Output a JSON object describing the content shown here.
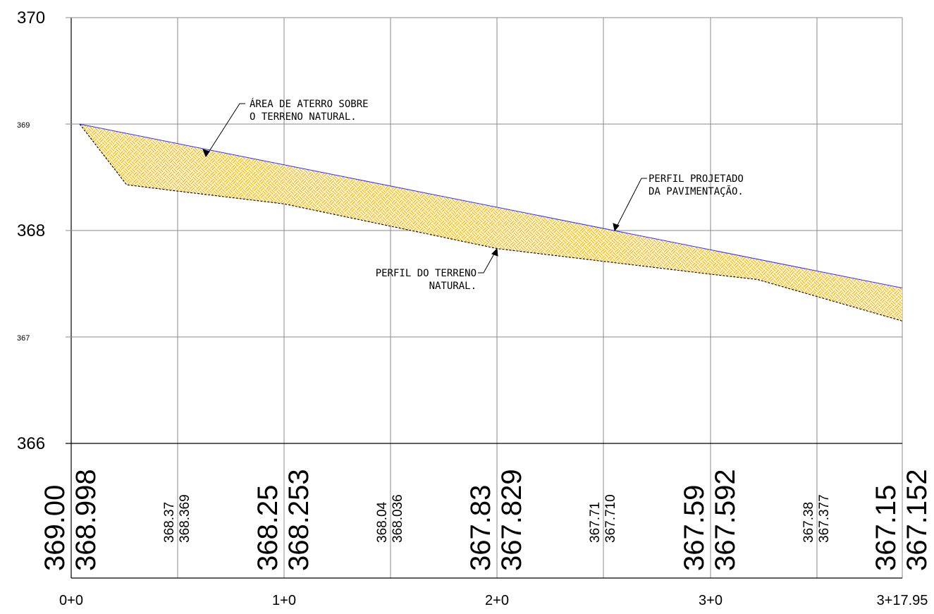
{
  "chart_data": {
    "type": "line",
    "title": "",
    "xlabel": "",
    "ylabel": "",
    "xlim": [
      0,
      317.95
    ],
    "ylim": [
      366,
      370
    ],
    "y_ticks": [
      {
        "value": 370,
        "label": "370"
      },
      {
        "value": 369,
        "label": "369"
      },
      {
        "value": 368,
        "label": "368"
      },
      {
        "value": 367,
        "label": "367"
      },
      {
        "value": 366,
        "label": "366"
      }
    ],
    "x_ticks": [
      {
        "value": 0,
        "label": "0+0"
      },
      {
        "value": 100,
        "label": "1+0"
      },
      {
        "value": 200,
        "label": "2+0"
      },
      {
        "value": 300,
        "label": "3+0"
      },
      {
        "value": 317.95,
        "label": "3+17.95"
      }
    ],
    "grid": true,
    "series": [
      {
        "name": "PERFIL PROJETADO DA PAVIMENTAÇÃO.",
        "color": "#3333ff",
        "points": [
          [
            4,
            369.0
          ],
          [
            317.95,
            367.46
          ]
        ]
      },
      {
        "name": "PERFIL DO TERRENO NATURAL.",
        "color": "#000000",
        "dashed": true,
        "points": [
          [
            4,
            369.0
          ],
          [
            26,
            368.43
          ],
          [
            50,
            368.37
          ],
          [
            100,
            368.25
          ],
          [
            150,
            368.04
          ],
          [
            200,
            367.83
          ],
          [
            250,
            367.71
          ],
          [
            300,
            367.59
          ],
          [
            322,
            367.54
          ],
          [
            350,
            367.38
          ],
          [
            382,
            367.15
          ]
        ]
      }
    ],
    "fill_area": {
      "name": "ÁREA DE ATERRO SOBRE O TERRENO NATURAL.",
      "color": "#f5b800"
    },
    "elevation_table": [
      {
        "station": 0,
        "design": "369.00",
        "ground": "368.998",
        "size": "large"
      },
      {
        "station": 50,
        "design": "368.37",
        "ground": "368.369",
        "size": "small"
      },
      {
        "station": 100,
        "design": "368.25",
        "ground": "368.253",
        "size": "large"
      },
      {
        "station": 150,
        "design": "368.04",
        "ground": "368.036",
        "size": "small"
      },
      {
        "station": 200,
        "design": "367.83",
        "ground": "367.829",
        "size": "large"
      },
      {
        "station": 250,
        "design": "367.71",
        "ground": "367.710",
        "size": "small"
      },
      {
        "station": 300,
        "design": "367.59",
        "ground": "367.592",
        "size": "large"
      },
      {
        "station": 350,
        "design": "367.38",
        "ground": "367.377",
        "size": "small"
      },
      {
        "station": 389,
        "design": "367.15",
        "ground": "367.152",
        "size": "large"
      }
    ],
    "annotations": [
      {
        "name": "fill-area-note",
        "lines": [
          "ÁREA DE ATERRO SOBRE",
          "O TERRENO NATURAL."
        ]
      },
      {
        "name": "design-profile-note",
        "lines": [
          "PERFIL PROJETADO",
          "DA PAVIMENTAÇÃO."
        ]
      },
      {
        "name": "ground-profile-note",
        "lines": [
          "PERFIL DO TERRENO",
          "NATURAL."
        ]
      }
    ]
  }
}
